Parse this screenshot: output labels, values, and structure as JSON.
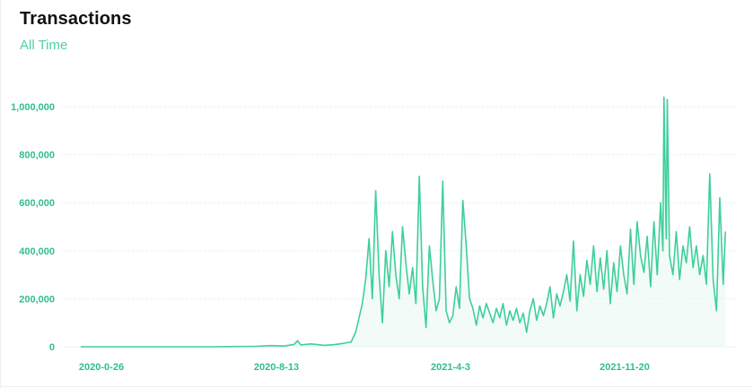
{
  "header": {
    "title": "Transactions",
    "subtitle": "All Time"
  },
  "colors": {
    "line": "#3ecf9a",
    "area": "#e8f8f1",
    "grid": "#e2f5ee",
    "tick": "#2fbf8b",
    "title": "#111111",
    "subtitle": "#4fcfa0"
  },
  "chart_data": {
    "type": "line",
    "title": "Transactions",
    "subtitle": "All Time",
    "xlabel": "",
    "ylabel": "",
    "ylim": [
      0,
      1000000
    ],
    "yticks": [
      0,
      200000,
      400000,
      600000,
      800000,
      1000000
    ],
    "ytick_labels": [
      "0",
      "200,000",
      "400,000",
      "600,000",
      "800,000",
      "1,000,000"
    ],
    "xtick_labels": [
      "2020-0-26",
      "2020-8-13",
      "2021-4-3",
      "2021-11-20"
    ],
    "grid": true,
    "legend": "none",
    "series": [
      {
        "points": [
          [
            0,
            0
          ],
          [
            56,
            0
          ],
          [
            120,
            0
          ],
          [
            157,
            2000
          ],
          [
            170,
            5000
          ],
          [
            182,
            3000
          ],
          [
            191,
            10000
          ],
          [
            194,
            25000
          ],
          [
            197,
            8000
          ],
          [
            206,
            12000
          ],
          [
            218,
            6000
          ],
          [
            227,
            9000
          ],
          [
            236,
            15000
          ],
          [
            242,
            20000
          ],
          [
            246,
            60000
          ],
          [
            249,
            120000
          ],
          [
            252,
            180000
          ],
          [
            255,
            280000
          ],
          [
            258,
            450000
          ],
          [
            261,
            200000
          ],
          [
            264,
            650000
          ],
          [
            267,
            300000
          ],
          [
            270,
            100000
          ],
          [
            273,
            400000
          ],
          [
            276,
            250000
          ],
          [
            279,
            480000
          ],
          [
            282,
            300000
          ],
          [
            285,
            200000
          ],
          [
            288,
            500000
          ],
          [
            291,
            350000
          ],
          [
            294,
            220000
          ],
          [
            297,
            330000
          ],
          [
            300,
            180000
          ],
          [
            303,
            710000
          ],
          [
            306,
            250000
          ],
          [
            309,
            80000
          ],
          [
            312,
            420000
          ],
          [
            315,
            280000
          ],
          [
            318,
            150000
          ],
          [
            321,
            200000
          ],
          [
            324,
            690000
          ],
          [
            327,
            150000
          ],
          [
            330,
            100000
          ],
          [
            333,
            130000
          ],
          [
            336,
            250000
          ],
          [
            339,
            160000
          ],
          [
            342,
            610000
          ],
          [
            345,
            420000
          ],
          [
            348,
            200000
          ],
          [
            351,
            160000
          ],
          [
            354,
            90000
          ],
          [
            357,
            170000
          ],
          [
            360,
            120000
          ],
          [
            363,
            180000
          ],
          [
            366,
            140000
          ],
          [
            369,
            100000
          ],
          [
            372,
            160000
          ],
          [
            375,
            120000
          ],
          [
            378,
            180000
          ],
          [
            381,
            90000
          ],
          [
            384,
            150000
          ],
          [
            387,
            110000
          ],
          [
            390,
            160000
          ],
          [
            393,
            100000
          ],
          [
            396,
            140000
          ],
          [
            399,
            60000
          ],
          [
            402,
            150000
          ],
          [
            405,
            200000
          ],
          [
            408,
            110000
          ],
          [
            411,
            170000
          ],
          [
            414,
            130000
          ],
          [
            417,
            180000
          ],
          [
            420,
            250000
          ],
          [
            423,
            120000
          ],
          [
            426,
            220000
          ],
          [
            429,
            170000
          ],
          [
            432,
            230000
          ],
          [
            435,
            300000
          ],
          [
            438,
            190000
          ],
          [
            441,
            440000
          ],
          [
            444,
            150000
          ],
          [
            447,
            300000
          ],
          [
            450,
            210000
          ],
          [
            453,
            360000
          ],
          [
            456,
            260000
          ],
          [
            459,
            420000
          ],
          [
            462,
            230000
          ],
          [
            465,
            370000
          ],
          [
            468,
            240000
          ],
          [
            471,
            400000
          ],
          [
            474,
            180000
          ],
          [
            477,
            350000
          ],
          [
            480,
            230000
          ],
          [
            483,
            420000
          ],
          [
            486,
            300000
          ],
          [
            489,
            220000
          ],
          [
            492,
            490000
          ],
          [
            495,
            260000
          ],
          [
            498,
            520000
          ],
          [
            501,
            380000
          ],
          [
            504,
            310000
          ],
          [
            507,
            460000
          ],
          [
            510,
            250000
          ],
          [
            513,
            520000
          ],
          [
            516,
            300000
          ],
          [
            519,
            600000
          ],
          [
            521,
            400000
          ],
          [
            522,
            1040000
          ],
          [
            524,
            450000
          ],
          [
            525,
            1030000
          ],
          [
            527,
            380000
          ],
          [
            530,
            300000
          ],
          [
            533,
            480000
          ],
          [
            536,
            280000
          ],
          [
            539,
            420000
          ],
          [
            542,
            350000
          ],
          [
            545,
            500000
          ],
          [
            548,
            330000
          ],
          [
            551,
            420000
          ],
          [
            554,
            300000
          ],
          [
            557,
            380000
          ],
          [
            560,
            260000
          ],
          [
            563,
            720000
          ],
          [
            566,
            280000
          ],
          [
            569,
            150000
          ],
          [
            572,
            620000
          ],
          [
            575,
            260000
          ],
          [
            577,
            480000
          ]
        ]
      }
    ]
  }
}
